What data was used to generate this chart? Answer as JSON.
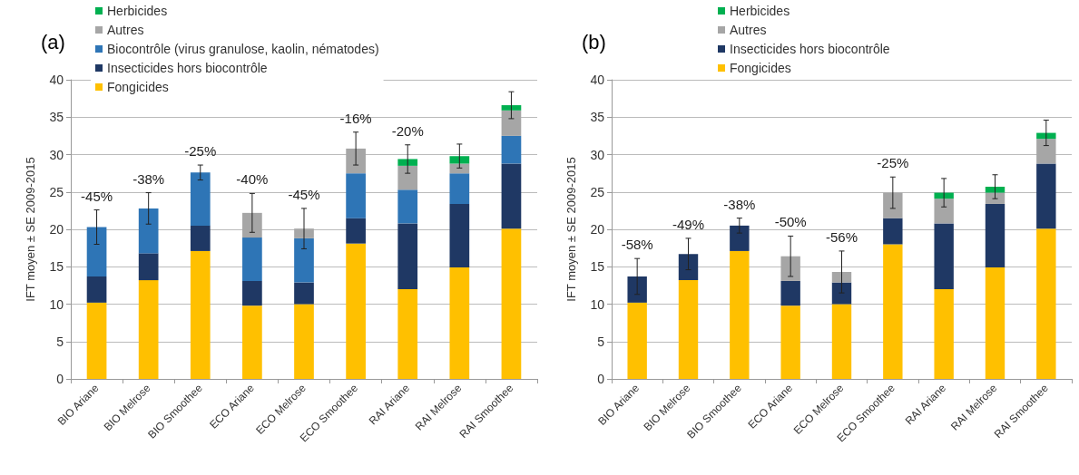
{
  "chart_data": [
    {
      "type": "bar",
      "title": "(a)",
      "ylabel": "IFT moyen ± SE 2009-2015",
      "stacked": true,
      "grid": "y",
      "legend": "top",
      "ylim": [
        0,
        40
      ],
      "yticks": [
        0,
        5,
        10,
        15,
        20,
        25,
        30,
        35,
        40
      ],
      "categories": [
        "BIO Ariane",
        "BIO Melrose",
        "BIO Smoothee",
        "ECO Ariane",
        "ECO Melrose",
        "ECO Smoothee",
        "RAI Ariane",
        "RAI Melrose",
        "RAI Smoothee"
      ],
      "series": [
        {
          "name": "Fongicides",
          "color": "#ffc000",
          "values": [
            10.2,
            13.2,
            17.1,
            9.8,
            10.0,
            18.1,
            12.0,
            14.9,
            20.1
          ]
        },
        {
          "name": "Insecticides hors biocontrôle",
          "color": "#1f3864",
          "values": [
            3.5,
            3.6,
            3.4,
            3.3,
            2.9,
            3.4,
            8.8,
            8.5,
            8.7
          ]
        },
        {
          "name": "Biocontrôle (virus granulose, kaolin, nématodes)",
          "color": "#2e75b6",
          "values": [
            6.6,
            6.0,
            7.1,
            5.8,
            5.9,
            6.0,
            4.5,
            4.1,
            3.7
          ]
        },
        {
          "name": "Autres",
          "color": "#a6a6a6",
          "values": [
            0,
            0,
            0,
            3.3,
            1.3,
            3.3,
            3.2,
            1.3,
            3.4
          ]
        },
        {
          "name": "Herbicides",
          "color": "#00b050",
          "values": [
            0,
            0,
            0,
            0,
            0,
            0,
            0.9,
            1.0,
            0.7
          ],
          "errors": [
            2.3,
            2.1,
            1.0,
            2.6,
            2.7,
            2.2,
            1.9,
            1.6,
            1.8
          ]
        }
      ],
      "annotations": [
        "-45%",
        "-38%",
        "-25%",
        "-40%",
        "-45%",
        "-16%",
        "-20%"
      ]
    },
    {
      "type": "bar",
      "title": "(b)",
      "ylabel": "IFT moyen ± SE 2009-2015",
      "stacked": true,
      "grid": "y",
      "legend": "top",
      "ylim": [
        0,
        40
      ],
      "yticks": [
        0,
        5,
        10,
        15,
        20,
        25,
        30,
        35,
        40
      ],
      "categories": [
        "BIO Ariane",
        "BIO Melrose",
        "BIO Smoothee",
        "ECO Ariane",
        "ECO Melrose",
        "ECO Smoothee",
        "RAI Ariane",
        "RAI Melrose",
        "RAI Smoothee"
      ],
      "series": [
        {
          "name": "Fongicides",
          "color": "#ffc000",
          "values": [
            10.2,
            13.2,
            17.1,
            9.8,
            10.0,
            18.0,
            12.0,
            14.9,
            20.1
          ]
        },
        {
          "name": "Insecticides hors biocontrôle",
          "color": "#1f3864",
          "values": [
            3.5,
            3.5,
            3.4,
            3.3,
            2.9,
            3.5,
            8.8,
            8.5,
            8.7
          ]
        },
        {
          "name": "Autres",
          "color": "#a6a6a6",
          "values": [
            0,
            0,
            0,
            3.3,
            1.4,
            3.4,
            3.3,
            1.5,
            3.3
          ]
        },
        {
          "name": "Herbicides",
          "color": "#00b050",
          "values": [
            0,
            0,
            0,
            0,
            0,
            0,
            0.8,
            0.8,
            0.8
          ],
          "errors": [
            2.4,
            2.1,
            1.0,
            2.7,
            2.8,
            2.1,
            1.9,
            1.6,
            1.7
          ]
        }
      ],
      "annotations": [
        "-58%",
        "-49%",
        "-38%",
        "-50%",
        "-56%",
        "-25%"
      ]
    }
  ]
}
